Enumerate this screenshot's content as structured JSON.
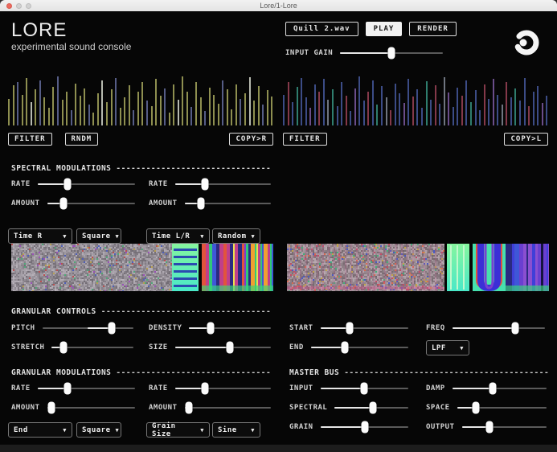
{
  "window": {
    "title": "Lore/1-Lore"
  },
  "ui": {
    "dashes": "------------------------------------------------------------------------------------------",
    "dropdown_arrow": "▼"
  },
  "header": {
    "title": "LORE",
    "subtitle": "experimental sound console",
    "file_button": "Quill 2.wav",
    "play_button": "PLAY",
    "render_button": "RENDER",
    "input_gain_label": "INPUT GAIN",
    "input_gain": 0.5
  },
  "channels": {
    "left": {
      "filter_button": "FILTER",
      "rndm_button": "RNDM",
      "copy_button": "COPY>R",
      "palette": [
        "#8e8f50",
        "#565d86",
        "#b7bab0"
      ],
      "heights": [
        52,
        78,
        85,
        60,
        92,
        45,
        70,
        88,
        55,
        35,
        75,
        95,
        50,
        65,
        30,
        82,
        58,
        72,
        40,
        25,
        62,
        88,
        45,
        70,
        92,
        35,
        55,
        78,
        30,
        65,
        85,
        48,
        38,
        90,
        58,
        72,
        25,
        80,
        50,
        95,
        66,
        36,
        84,
        54,
        28,
        74,
        60,
        42,
        88,
        70,
        32,
        80,
        52,
        62,
        94,
        48,
        76,
        40,
        68,
        56
      ],
      "colors": [
        0,
        0,
        1,
        0,
        0,
        2,
        0,
        1,
        0,
        0,
        0,
        1,
        0,
        0,
        1,
        0,
        0,
        0,
        1,
        0,
        0,
        2,
        0,
        0,
        1,
        0,
        0,
        0,
        1,
        0,
        0,
        1,
        0,
        0,
        0,
        1,
        0,
        0,
        2,
        0,
        0,
        1,
        0,
        0,
        1,
        0,
        0,
        0,
        1,
        0,
        0,
        0,
        1,
        0,
        2,
        0,
        0,
        1,
        0,
        0
      ]
    },
    "right": {
      "filter_button": "FILTER",
      "copy_button": "COPY>L",
      "palette": [
        "#3c4c86",
        "#84394a",
        "#2f7d6e",
        "#6a4d8a",
        "#6f7580"
      ],
      "heights": [
        60,
        85,
        45,
        75,
        92,
        55,
        35,
        80,
        65,
        90,
        50,
        70,
        38,
        85,
        58,
        28,
        72,
        95,
        48,
        66,
        88,
        40,
        76,
        54,
        30,
        82,
        62,
        44,
        90,
        56,
        70,
        34,
        86,
        50,
        78,
        42,
        94,
        64,
        36,
        74,
        58,
        88,
        46,
        68,
        30,
        80,
        52,
        90,
        60,
        40,
        84,
        55,
        72,
        48,
        92,
        38,
        66,
        76,
        44,
        58
      ],
      "colors": [
        0,
        1,
        0,
        2,
        0,
        0,
        3,
        0,
        1,
        0,
        4,
        2,
        0,
        0,
        1,
        0,
        3,
        0,
        0,
        1,
        0,
        2,
        0,
        4,
        1,
        0,
        0,
        3,
        0,
        1,
        0,
        0,
        2,
        0,
        1,
        0,
        4,
        3,
        0,
        0,
        1,
        0,
        2,
        0,
        0,
        1,
        0,
        3,
        0,
        4,
        1,
        0,
        2,
        0,
        0,
        1,
        0,
        0,
        3,
        0
      ]
    }
  },
  "spectral_modulations": {
    "header": "SPECTRAL MODULATIONS",
    "mod1": {
      "rate_label": "RATE",
      "rate": 0.31,
      "amount_label": "AMOUNT",
      "amount": 0.19,
      "target": "Time R",
      "shape": "Square"
    },
    "mod2": {
      "rate_label": "RATE",
      "rate": 0.31,
      "amount_label": "AMOUNT",
      "amount": 0.19,
      "target": "Time L/R",
      "shape": "Random"
    }
  },
  "spectrograms": {
    "left": {
      "seed": 7,
      "sections": [
        {
          "type": "noise",
          "w": 0.615,
          "base": [
            148,
            142,
            150
          ],
          "accentChance": 0.06,
          "accents": [
            "#b85050",
            "#5060b8",
            "#50a878",
            "#b8a050",
            "#9a50b8"
          ]
        },
        {
          "type": "greenband",
          "w": 0.1,
          "colors": [
            "#85f59e",
            "#49e8c8"
          ],
          "stripe": "#2a4ab0",
          "stripeDir": "h"
        },
        {
          "type": "gap",
          "w": 0.013,
          "color": "#060606"
        },
        {
          "type": "vstripes",
          "w": 0.272,
          "colors": [
            "#e2543c",
            "#f0a030",
            "#7a3fd0",
            "#3f57d8",
            "#c03f8a",
            "#30c878",
            "#e8e050",
            "#2a2a80"
          ],
          "bottom": "#35d878"
        }
      ]
    },
    "right": {
      "seed": 11,
      "sections": [
        {
          "type": "noise",
          "w": 0.6,
          "base": [
            150,
            135,
            142
          ],
          "accentChance": 0.1,
          "vgrid": true,
          "accents": [
            "#c24b66",
            "#43b07a",
            "#4b5ac2",
            "#c2a44b",
            "#d86a50"
          ]
        },
        {
          "type": "gap",
          "w": 0.008,
          "color": "#060606"
        },
        {
          "type": "greenband",
          "w": 0.085,
          "colors": [
            "#85f59e",
            "#49e8c8"
          ],
          "stripe": "#c2f8cc",
          "stripeDir": "v"
        },
        {
          "type": "gap",
          "w": 0.012,
          "color": "#060606"
        },
        {
          "type": "ublob",
          "w": 0.125,
          "bg": "#46e0ae",
          "u": [
            "#3b2fd6",
            "#7a3fd0"
          ],
          "edge": "#e0503c"
        },
        {
          "type": "vstripes",
          "w": 0.17,
          "colors": [
            "#3f3fd8",
            "#6a3fd0",
            "#2a2a80",
            "#14143f",
            "#8a4fd0",
            "#3f57d8"
          ],
          "bottom": "#35d878"
        }
      ]
    }
  },
  "granular_controls": {
    "header": "GRANULAR CONTROLS",
    "pitch_label": "PITCH",
    "pitch": 0.76,
    "stretch_label": "STRETCH",
    "stretch": 0.14,
    "density_label": "DENSITY",
    "density": 0.26,
    "size_label": "SIZE",
    "size": 0.57,
    "start_label": "START",
    "start": 0.33,
    "end_label": "END",
    "end": 0.35,
    "freq_label": "FREQ",
    "freq": 0.68,
    "filter_type": "LPF"
  },
  "granular_modulations": {
    "header": "GRANULAR MODULATIONS",
    "mod1": {
      "rate_label": "RATE",
      "rate": 0.31,
      "amount_label": "AMOUNT",
      "amount": 0.05,
      "target": "End",
      "shape": "Square"
    },
    "mod2": {
      "rate_label": "RATE",
      "rate": 0.31,
      "amount_label": "AMOUNT",
      "amount": 0.05,
      "target": "Grain Size",
      "shape": "Sine"
    }
  },
  "master_bus": {
    "header": "MASTER BUS",
    "input_label": "INPUT",
    "input": 0.5,
    "spectral_label": "SPECTRAL",
    "spectral": 0.52,
    "grain_label": "GRAIN",
    "grain": 0.51,
    "damp_label": "DAMP",
    "damp": 0.43,
    "space_label": "SPACE",
    "space": 0.21,
    "output_label": "OUTPUT",
    "output": 0.33
  }
}
